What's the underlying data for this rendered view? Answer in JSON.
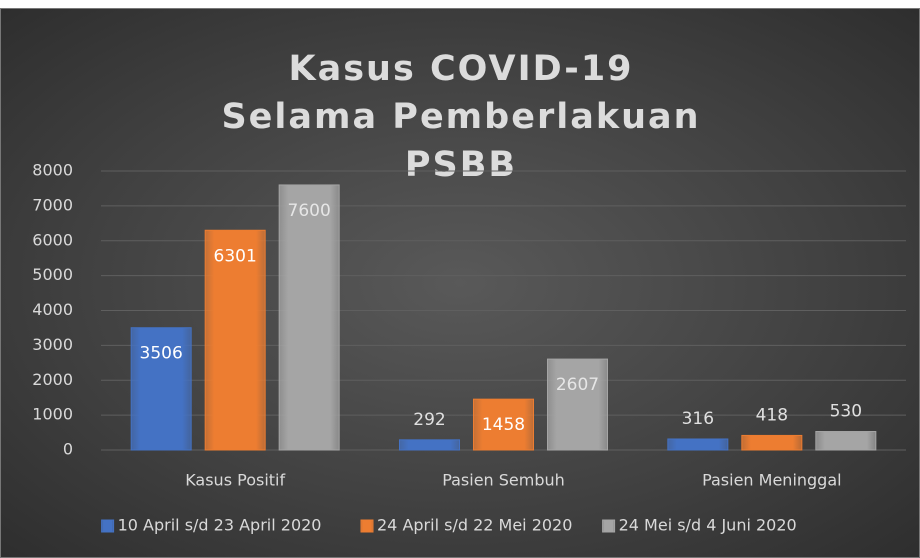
{
  "chart_data": {
    "type": "bar",
    "title": "Kasus COVID-19 Selama Pemberlakuan PSBB",
    "categories": [
      "Kasus Positif",
      "Pasien Sembuh",
      "Pasien Meninggal"
    ],
    "series": [
      {
        "name": "10 April s/d 23 April 2020",
        "color": "#4472c4",
        "values": [
          3506,
          292,
          316
        ]
      },
      {
        "name": "24 April s/d 22 Mei 2020",
        "color": "#ed7d31",
        "values": [
          6301,
          1458,
          418
        ]
      },
      {
        "name": "24 Mei s/d 4 Juni 2020",
        "color": "#a5a5a5",
        "values": [
          7600,
          2607,
          530
        ]
      }
    ],
    "ylim": [
      0,
      8000
    ],
    "yticks": [
      0,
      1000,
      2000,
      3000,
      4000,
      5000,
      6000,
      7000,
      8000
    ],
    "grid": true,
    "legend": "bottom"
  }
}
